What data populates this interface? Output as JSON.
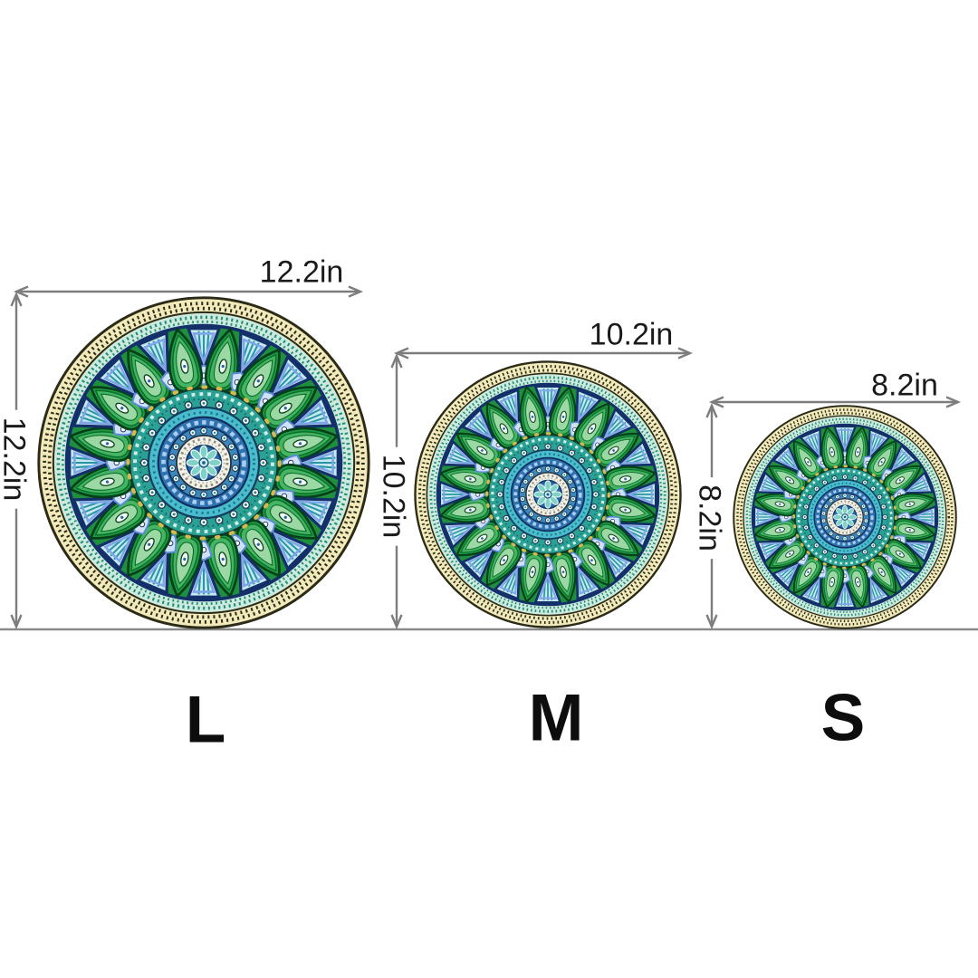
{
  "sizes": [
    {
      "letter": "L",
      "width": "12.2in",
      "height": "12.2in"
    },
    {
      "letter": "M",
      "width": "10.2in",
      "height": "10.2in"
    },
    {
      "letter": "S",
      "width": "8.2in",
      "height": "8.2in"
    }
  ],
  "style": {
    "dimension_line_color": "#7d7d7d",
    "baseline_color": "#8a8a8a",
    "label_text_color": "#1a1a1a",
    "background": "#ffffff"
  },
  "mandala_palette": {
    "outer_cream_ring": "#f2eabb",
    "chevron_dark": "#2b2b18",
    "mint_ring": "#cdeadd",
    "teal_chevron": "#1e8d7a",
    "green_field": "#1f8f3e",
    "dark_green": "#06401a",
    "light_green": "#46b563",
    "navy_border": "#14306a",
    "periwinkle": "#7ea6e8",
    "hatch_triangle_fill": "#c8e9ee",
    "teal_ring": "#2ba195",
    "turquoise_ring": "#4abccb",
    "blue_ring": "#2e72b0",
    "white_lace_ring": "#f4f2e8",
    "center_blue": "#2a66a9",
    "gold_dots": "#d8b94e"
  }
}
